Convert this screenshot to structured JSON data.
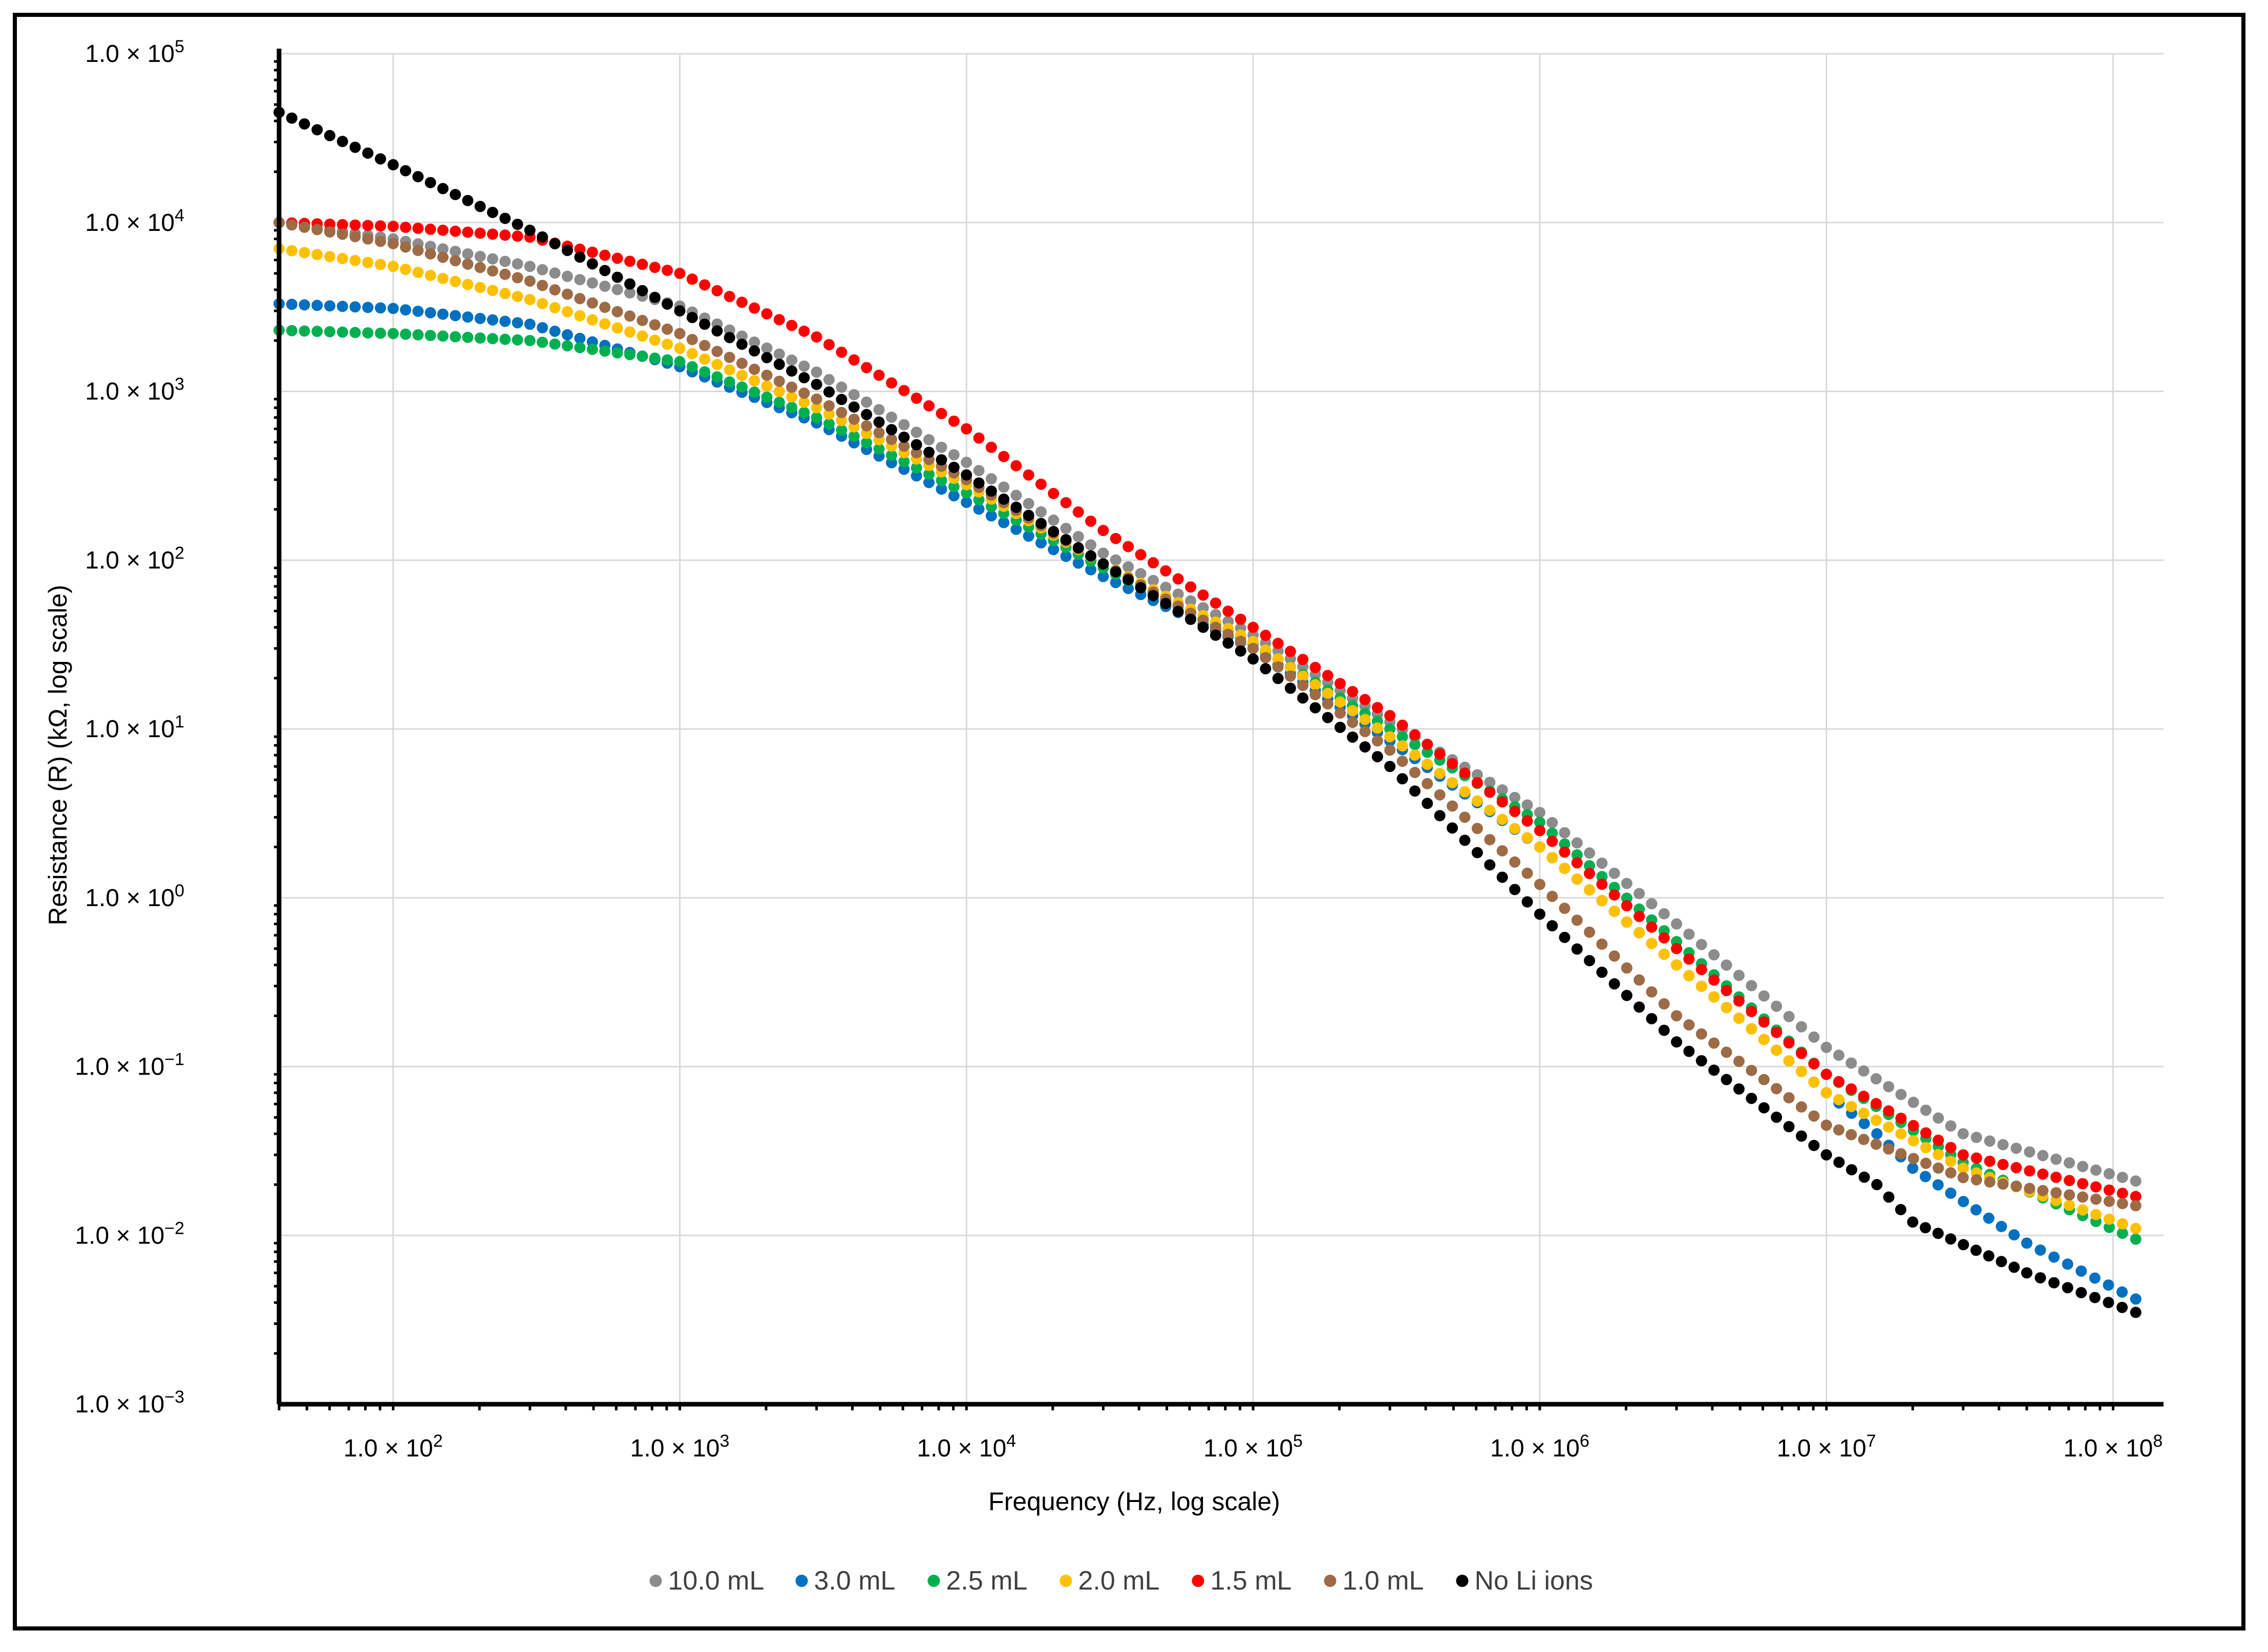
{
  "chart_data": {
    "type": "scatter",
    "title": "",
    "xlabel": "Frequency (Hz, log scale)",
    "ylabel": "Resistance (R) (kΩ, log scale)",
    "x_scale": "log",
    "y_scale": "log",
    "xlim": [
      40,
      150000000
    ],
    "ylim": [
      0.001,
      100000
    ],
    "grid": true,
    "legend_position": "bottom",
    "x_ticks": [
      {
        "value": 100,
        "mantissa": "1.0 × 10",
        "exp": "2"
      },
      {
        "value": 1000,
        "mantissa": "1.0 × 10",
        "exp": "3"
      },
      {
        "value": 10000,
        "mantissa": "1.0 × 10",
        "exp": "4"
      },
      {
        "value": 100000,
        "mantissa": "1.0 × 10",
        "exp": "5"
      },
      {
        "value": 1000000,
        "mantissa": "1.0 × 10",
        "exp": "6"
      },
      {
        "value": 10000000,
        "mantissa": "1.0 × 10",
        "exp": "7"
      },
      {
        "value": 100000000,
        "mantissa": "1.0 × 10",
        "exp": "8"
      }
    ],
    "y_ticks": [
      {
        "value": 100000,
        "mantissa": "1.0 × 10",
        "exp": "5"
      },
      {
        "value": 10000,
        "mantissa": "1.0 × 10",
        "exp": "4"
      },
      {
        "value": 1000,
        "mantissa": "1.0 × 10",
        "exp": "3"
      },
      {
        "value": 100,
        "mantissa": "1.0 × 10",
        "exp": "2"
      },
      {
        "value": 10,
        "mantissa": "1.0 × 10",
        "exp": "1"
      },
      {
        "value": 1,
        "mantissa": "1.0 × 10",
        "exp": "0"
      },
      {
        "value": 0.1,
        "mantissa": "1.0 × 10",
        "exp": "−1"
      },
      {
        "value": 0.01,
        "mantissa": "1.0 × 10",
        "exp": "−2"
      },
      {
        "value": 0.001,
        "mantissa": "1.0 × 10",
        "exp": "−3"
      }
    ],
    "series": [
      {
        "name": "10.0 mL",
        "color": "#8c8c8c",
        "x": [
          40,
          100,
          300,
          1000,
          3000,
          10000,
          30000,
          100000,
          300000,
          1000000,
          3000000,
          10000000,
          30000000,
          120000000
        ],
        "y": [
          10000,
          8000,
          5500,
          3200,
          1300,
          380,
          110,
          36,
          11,
          3.2,
          0.7,
          0.13,
          0.04,
          0.021
        ]
      },
      {
        "name": "3.0 mL",
        "color": "#0070c0",
        "x": [
          40,
          100,
          300,
          1000,
          3000,
          10000,
          30000,
          100000,
          300000,
          1000000,
          3000000,
          10000000,
          15000000,
          20000000,
          50000000,
          120000000
        ],
        "y": [
          3300,
          3100,
          2500,
          1400,
          650,
          220,
          80,
          30,
          8.5,
          2.0,
          0.4,
          0.07,
          0.04,
          0.025,
          0.009,
          0.0042
        ]
      },
      {
        "name": "2.5 mL",
        "color": "#00b050",
        "x": [
          40,
          100,
          300,
          1000,
          3000,
          10000,
          30000,
          100000,
          300000,
          1000000,
          3000000,
          10000000,
          30000000,
          120000000
        ],
        "y": [
          2300,
          2200,
          2000,
          1500,
          700,
          250,
          90,
          32,
          10,
          2.8,
          0.55,
          0.09,
          0.027,
          0.0095
        ]
      },
      {
        "name": "2.0 mL",
        "color": "#ffc000",
        "x": [
          40,
          100,
          300,
          1000,
          3000,
          10000,
          30000,
          100000,
          300000,
          1000000,
          3000000,
          10000000,
          30000000,
          120000000
        ],
        "y": [
          7000,
          5500,
          3500,
          1800,
          800,
          280,
          95,
          33,
          9,
          2.0,
          0.4,
          0.07,
          0.025,
          0.011
        ]
      },
      {
        "name": "1.5 mL",
        "color": "#ff0000",
        "x": [
          40,
          100,
          300,
          1000,
          3000,
          10000,
          30000,
          100000,
          300000,
          1000000,
          3000000,
          10000000,
          30000000,
          120000000
        ],
        "y": [
          10000,
          9500,
          8200,
          5000,
          2100,
          600,
          150,
          40,
          12,
          2.5,
          0.5,
          0.09,
          0.03,
          0.017
        ]
      },
      {
        "name": "1.0 mL",
        "color": "#9e6b47",
        "x": [
          40,
          100,
          300,
          1000,
          3000,
          10000,
          30000,
          100000,
          300000,
          1000000,
          3000000,
          10000000,
          30000000,
          120000000
        ],
        "y": [
          10000,
          7500,
          4500,
          2200,
          900,
          300,
          95,
          30,
          7.5,
          1.2,
          0.2,
          0.045,
          0.022,
          0.015
        ]
      },
      {
        "name": "No Li ions",
        "color": "#000000",
        "x": [
          40,
          100,
          300,
          1000,
          3000,
          10000,
          30000,
          100000,
          300000,
          1000000,
          3000000,
          10000000,
          15000000,
          20000000,
          50000000,
          120000000
        ],
        "y": [
          45000,
          22000,
          9000,
          3000,
          1100,
          320,
          95,
          26,
          6,
          0.8,
          0.14,
          0.03,
          0.02,
          0.012,
          0.006,
          0.0035
        ]
      }
    ]
  }
}
